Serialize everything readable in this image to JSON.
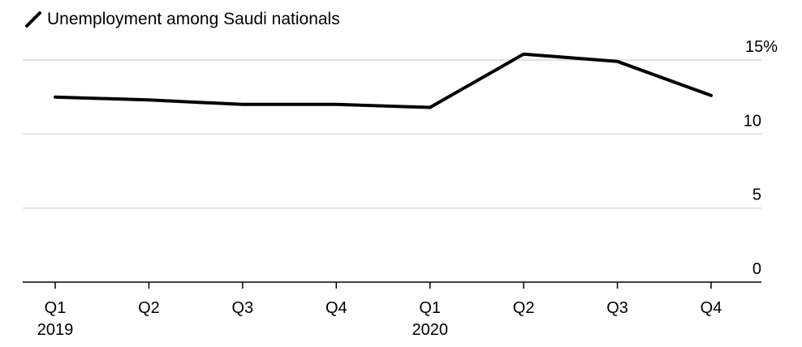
{
  "legend": {
    "label": "Unemployment among Saudi nationals"
  },
  "colors": {
    "series": "#000000",
    "grid": "#d9d9d9",
    "axis": "#000000"
  },
  "chart_data": {
    "type": "line",
    "title": "",
    "xlabel": "",
    "ylabel": "",
    "categories": [
      "Q1",
      "Q2",
      "Q3",
      "Q4",
      "Q1",
      "Q2",
      "Q3",
      "Q4"
    ],
    "year_labels": [
      "2019",
      "",
      "",
      "",
      "2020",
      "",
      "",
      ""
    ],
    "series": [
      {
        "name": "Unemployment among Saudi nationals",
        "values": [
          12.5,
          12.3,
          12.0,
          12.0,
          11.8,
          15.4,
          14.9,
          12.6
        ]
      }
    ],
    "ylim": [
      0,
      15
    ],
    "yticks": [
      0,
      5,
      10,
      15
    ],
    "ytick_labels": [
      "0",
      "5",
      "10",
      "15%"
    ],
    "grid": true,
    "y_axis_side": "right",
    "legend_position": "top-left"
  }
}
